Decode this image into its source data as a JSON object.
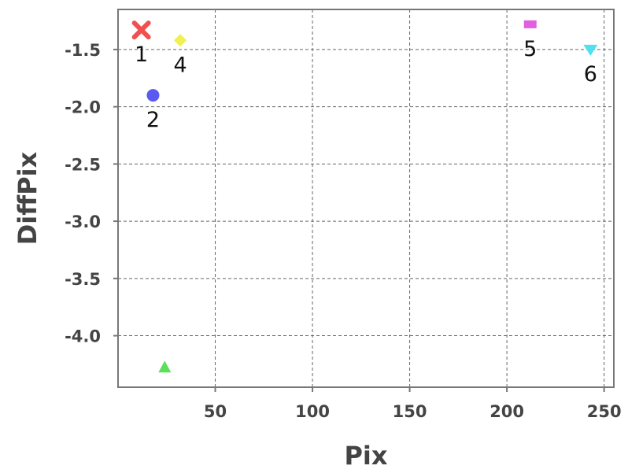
{
  "chart_data": {
    "type": "scatter",
    "title": "",
    "xlabel": "Pix",
    "ylabel": "DiffPix",
    "xlim": [
      0,
      255
    ],
    "ylim": [
      -4.45,
      -1.15
    ],
    "xticks": [
      50,
      100,
      150,
      200,
      250
    ],
    "xtick_labels": [
      "50",
      "100",
      "150",
      "200",
      "250"
    ],
    "yticks": [
      -1.5,
      -2.0,
      -2.5,
      -3.0,
      -3.5,
      -4.0
    ],
    "ytick_labels": [
      "-1.5",
      "-2.0",
      "-2.5",
      "-3.0",
      "-3.5",
      "-4.0"
    ],
    "grid": true,
    "points": [
      {
        "label": "1",
        "x": 12,
        "y": -1.33,
        "marker": "x",
        "color": "#f05050"
      },
      {
        "label": "2",
        "x": 18,
        "y": -1.9,
        "marker": "circle",
        "color": "#5a5af0"
      },
      {
        "label": "",
        "x": 24,
        "y": -4.28,
        "marker": "triangle-up",
        "color": "#5ae05a"
      },
      {
        "label": "4",
        "x": 32,
        "y": -1.42,
        "marker": "diamond",
        "color": "#f0f050"
      },
      {
        "label": "5",
        "x": 212,
        "y": -1.28,
        "marker": "square",
        "color": "#e060e0"
      },
      {
        "label": "6",
        "x": 243,
        "y": -1.5,
        "marker": "triangle-down",
        "color": "#50e0f0"
      }
    ]
  }
}
